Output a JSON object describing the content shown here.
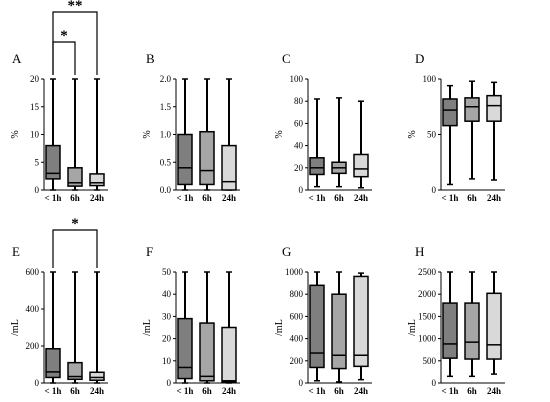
{
  "figure": {
    "colors": {
      "<1h": "#7f7f7f",
      "6h": "#a6a6a6",
      "24h": "#d9d9d9",
      "stroke": "#000000"
    }
  },
  "chart_data": [
    {
      "panel": "A",
      "type": "box",
      "ylabel": "%",
      "ylim": [
        0,
        20
      ],
      "yticks": [
        "0",
        "5",
        "10",
        "15",
        "20"
      ],
      "categories": [
        "< 1h",
        "6h",
        "24h"
      ],
      "boxes": [
        {
          "min": 0.0,
          "q1": 2.0,
          "median": 3.0,
          "q3": 8.0,
          "max": 20.0
        },
        {
          "min": 0.0,
          "q1": 0.7,
          "median": 1.3,
          "q3": 4.0,
          "max": 20.0
        },
        {
          "min": 0.0,
          "q1": 0.8,
          "median": 1.3,
          "q3": 2.9,
          "max": 20.0
        }
      ],
      "significance": [
        {
          "from": 0,
          "to": 1,
          "label": "*"
        },
        {
          "from": 0,
          "to": 2,
          "label": "**"
        }
      ]
    },
    {
      "panel": "B",
      "type": "box",
      "ylabel": "%",
      "ylim": [
        0,
        2.0
      ],
      "yticks": [
        "0.0",
        "0.5",
        "1.0",
        "1.5",
        "2.0"
      ],
      "categories": [
        "< 1h",
        "6h",
        "24h"
      ],
      "boxes": [
        {
          "min": 0.0,
          "q1": 0.1,
          "median": 0.4,
          "q3": 1.0,
          "max": 2.0
        },
        {
          "min": 0.0,
          "q1": 0.1,
          "median": 0.35,
          "q3": 1.05,
          "max": 2.0
        },
        {
          "min": 0.0,
          "q1": 0.0,
          "median": 0.15,
          "q3": 0.8,
          "max": 2.0
        }
      ]
    },
    {
      "panel": "C",
      "type": "box",
      "ylabel": "%",
      "ylim": [
        0,
        100
      ],
      "yticks": [
        "0",
        "20",
        "40",
        "60",
        "80",
        "100"
      ],
      "categories": [
        "< 1h",
        "6h",
        "24h"
      ],
      "boxes": [
        {
          "min": 3,
          "q1": 14,
          "median": 20,
          "q3": 29,
          "max": 82
        },
        {
          "min": 3,
          "q1": 15,
          "median": 20,
          "q3": 25,
          "max": 83
        },
        {
          "min": 2,
          "q1": 12,
          "median": 19,
          "q3": 32,
          "max": 80
        }
      ]
    },
    {
      "panel": "D",
      "type": "box",
      "ylabel": "%",
      "ylim": [
        0,
        100
      ],
      "yticks": [
        "0",
        "50",
        "100"
      ],
      "categories": [
        "< 1h",
        "6h",
        "24h"
      ],
      "boxes": [
        {
          "min": 5,
          "q1": 58,
          "median": 72,
          "q3": 82,
          "max": 94
        },
        {
          "min": 10,
          "q1": 62,
          "median": 75,
          "q3": 83,
          "max": 98
        },
        {
          "min": 9,
          "q1": 62,
          "median": 76,
          "q3": 85,
          "max": 97
        }
      ]
    },
    {
      "panel": "E",
      "type": "box",
      "ylabel": "/mL",
      "ylim": [
        0,
        600
      ],
      "yticks": [
        "0",
        "200",
        "400",
        "600"
      ],
      "categories": [
        "< 1h",
        "6h",
        "24h"
      ],
      "boxes": [
        {
          "min": 0,
          "q1": 30,
          "median": 60,
          "q3": 185,
          "max": 600
        },
        {
          "min": 0,
          "q1": 20,
          "median": 35,
          "q3": 110,
          "max": 600
        },
        {
          "min": 0,
          "q1": 15,
          "median": 30,
          "q3": 58,
          "max": 600
        }
      ],
      "significance": [
        {
          "from": 0,
          "to": 2,
          "label": "*"
        }
      ]
    },
    {
      "panel": "F",
      "type": "box",
      "ylabel": "/mL",
      "ylim": [
        0,
        50
      ],
      "yticks": [
        "0",
        "10",
        "20",
        "30",
        "40",
        "50"
      ],
      "categories": [
        "< 1h",
        "6h",
        "24h"
      ],
      "boxes": [
        {
          "min": 0,
          "q1": 2,
          "median": 7,
          "q3": 29,
          "max": 50
        },
        {
          "min": 0,
          "q1": 1,
          "median": 3,
          "q3": 27,
          "max": 50
        },
        {
          "min": 0,
          "q1": 0.5,
          "median": 1,
          "q3": 25,
          "max": 50
        }
      ]
    },
    {
      "panel": "G",
      "type": "box",
      "ylabel": "/mL",
      "ylim": [
        0,
        1000
      ],
      "yticks": [
        "0",
        "200",
        "400",
        "600",
        "800",
        "1000"
      ],
      "categories": [
        "< 1h",
        "6h",
        "24h"
      ],
      "boxes": [
        {
          "min": 20,
          "q1": 140,
          "median": 270,
          "q3": 880,
          "max": 1000
        },
        {
          "min": 10,
          "q1": 130,
          "median": 250,
          "q3": 800,
          "max": 1000
        },
        {
          "min": 30,
          "q1": 150,
          "median": 250,
          "q3": 960,
          "max": 990
        }
      ]
    },
    {
      "panel": "H",
      "type": "box",
      "ylabel": "/mL",
      "ylim": [
        0,
        2500
      ],
      "yticks": [
        "0",
        "500",
        "1000",
        "1500",
        "2000",
        "2500"
      ],
      "categories": [
        "< 1h",
        "6h",
        "24h"
      ],
      "boxes": [
        {
          "min": 150,
          "q1": 560,
          "median": 880,
          "q3": 1800,
          "max": 2500
        },
        {
          "min": 150,
          "q1": 540,
          "median": 920,
          "q3": 1800,
          "max": 2500
        },
        {
          "min": 200,
          "q1": 540,
          "median": 860,
          "q3": 2020,
          "max": 2500
        }
      ]
    }
  ]
}
